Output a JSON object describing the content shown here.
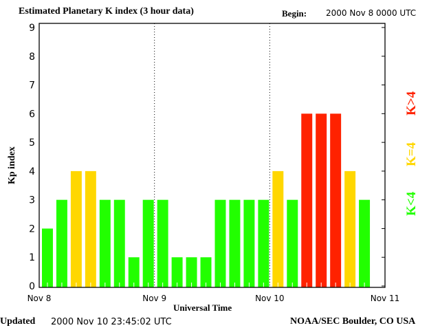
{
  "chart_data": {
    "type": "bar",
    "title": "Estimated Planetary K index (3 hour data)",
    "begin_label": "Begin:",
    "begin_value": "2000 Nov 8 0000 UTC",
    "xlabel": "Universal Time",
    "ylabel": "Kp index",
    "ylim": [
      0,
      9
    ],
    "yticks": [
      "0",
      "1",
      "2",
      "3",
      "4",
      "5",
      "6",
      "7",
      "8",
      "9"
    ],
    "xticks": [
      "Nov 8",
      "Nov 9",
      "Nov 10",
      "Nov 11"
    ],
    "values": [
      2,
      3,
      4,
      4,
      3,
      3,
      1,
      3,
      3,
      1,
      1,
      1,
      3,
      3,
      3,
      3,
      4,
      3,
      6,
      6,
      6,
      4,
      3
    ],
    "interval_hours": 3,
    "legend": [
      {
        "label": "K<4",
        "color": "#22ff00"
      },
      {
        "label": "K=4",
        "color": "#ffd700"
      },
      {
        "label": "K>4",
        "color": "#ff2200"
      }
    ],
    "colors": {
      "low": "#22ff00",
      "equal": "#ffd700",
      "high": "#ff2200"
    },
    "grid": "dotted vertical day separators"
  },
  "footer": {
    "updated_label": "Updated",
    "updated_value": "2000 Nov 10 23:45:02 UTC",
    "source": "NOAA/SEC Boulder, CO USA"
  }
}
